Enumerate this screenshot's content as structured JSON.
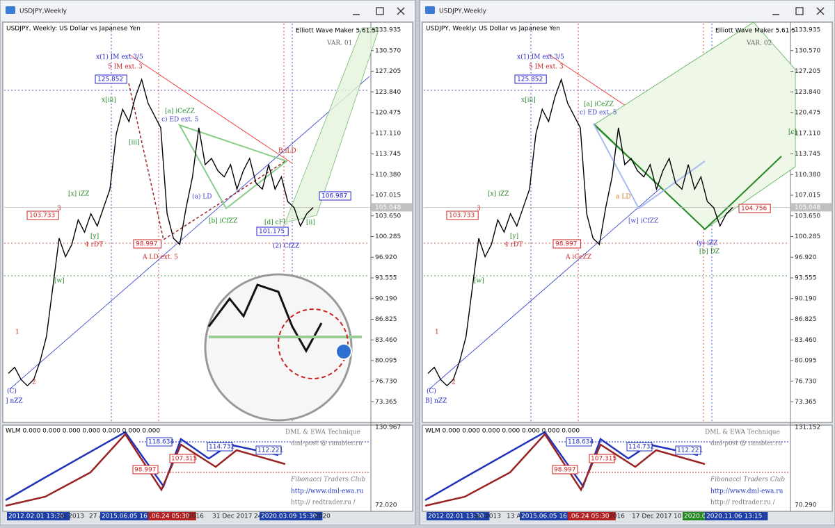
{
  "price_trace": [
    78,
    79,
    77,
    76,
    77,
    80,
    84,
    92,
    100,
    97,
    99,
    103,
    101,
    104,
    102,
    105,
    108,
    117,
    121,
    119,
    123,
    125.85,
    122,
    120,
    118,
    104,
    100,
    99,
    105,
    110,
    118,
    112,
    113,
    111,
    110,
    112,
    108,
    111,
    113,
    109,
    108,
    112,
    108,
    110,
    106,
    105,
    102,
    104,
    105
  ],
  "windows": [
    {
      "title": "USDJPY,Weekly",
      "header": "USDJPY, Weekly:  US Dollar vs Japanese Yen",
      "ea": "Elliott Wave Maker 5.61.5",
      "variant": "VAR. 01",
      "price_ticks": [
        "133.935",
        "130.570",
        "127.205",
        "123.840",
        "120.475",
        "117.110",
        "113.745",
        "110.380",
        "107.015",
        "103.650",
        "100.285",
        "96.920",
        "93.555",
        "90.190",
        "86.825",
        "83.460",
        "80.095",
        "76.730",
        "73.365"
      ],
      "current_price": "105.048",
      "annotations": [
        {
          "text": "x(1) IM ext.3/5",
          "color": "#2222cc"
        },
        {
          "text": "5 IM ext. 3",
          "color": "#cc2222"
        },
        {
          "text": "125.852",
          "color": "#2222cc",
          "boxed": true
        },
        {
          "text": "103.733",
          "color": "#cc2222",
          "boxed": true
        },
        {
          "text": "3",
          "color": "#cc2222"
        },
        {
          "text": "4 rDT",
          "color": "#cc2222"
        },
        {
          "text": "98.997",
          "color": "#cc2222",
          "boxed": true
        },
        {
          "text": "A LD ext. 5",
          "color": "#cc2222"
        },
        {
          "text": "(2) CfZZ",
          "color": "#2222cc"
        },
        {
          "text": "101.175",
          "color": "#2222cc",
          "boxed": true
        },
        {
          "text": "106.987",
          "color": "#2222cc",
          "boxed": true
        },
        {
          "text": "[a] iCeZZ",
          "color": "#228822"
        },
        {
          "text": "c) ED ext. 5",
          "color": "#4444cc"
        },
        {
          "text": "B iLD",
          "color": "#cc2222"
        },
        {
          "text": "(a) LD",
          "color": "#4444cc"
        },
        {
          "text": "[b] iCfZZ",
          "color": "#228822"
        },
        {
          "text": "[d] cFL",
          "color": "#228822"
        },
        {
          "text": "(C)",
          "color": "#2222cc"
        },
        {
          "text": "] nZZ",
          "color": "#2222cc"
        },
        {
          "text": "1",
          "color": "#cc2222"
        },
        {
          "text": "2",
          "color": "#cc2222"
        },
        {
          "text": "[x] iZZ",
          "color": "#228822"
        },
        {
          "text": "[w]",
          "color": "#228822"
        },
        {
          "text": "[y]",
          "color": "#228822"
        },
        {
          "text": "x[iii]",
          "color": "#228822"
        },
        {
          "text": "[iii]",
          "color": "#228822"
        },
        {
          "text": "[ii]",
          "color": "#228822"
        }
      ],
      "sub": {
        "label": "WLM 0.000 0.000 0.000 0.000 0.000 0.000 0.000",
        "axis_top": "130.967",
        "axis_bottom": "72.020",
        "levels": [
          "118.634",
          "114.732",
          "107.315",
          "98.997",
          "112.221"
        ],
        "credits": [
          "DML & EWA Technique",
          "dml-post @ rambler.ru",
          "Fibonacci Traders Club",
          "http://www.dml-ewa.ru",
          "http:// redtrader.ru /"
        ]
      },
      "time_labels": [
        {
          "text": "2012.02.01 13:30",
          "highlight": "#1f3fa8"
        },
        {
          "text": "eb 2013"
        },
        {
          "text": "27 A"
        },
        {
          "text": "2015.06.05 16:30",
          "highlight": "#1f3fa8"
        },
        {
          "text": ".06.24 05:30",
          "highlight": "#b22222"
        },
        {
          "text": "2016"
        },
        {
          "text": "31 Dec 2017"
        },
        {
          "text": "24"
        },
        {
          "text": "2020.03.09 15:30",
          "highlight": "#1f3fa8"
        },
        {
          "text": "2020"
        }
      ]
    },
    {
      "title": "USDJPY,Weekly",
      "header": "USDJPY, Weekly:  US Dollar vs Japanese Yen",
      "ea": "Elliott Wave Maker 5.61.5",
      "variant": "VAR. 02",
      "price_ticks": [
        "133.935",
        "130.570",
        "127.205",
        "123.840",
        "120.475",
        "117.110",
        "113.745",
        "110.380",
        "107.015",
        "103.650",
        "100.285",
        "96.920",
        "93.555",
        "90.190",
        "86.825",
        "83.460",
        "80.095",
        "76.730",
        "73.365"
      ],
      "current_price": "105.048",
      "annotations": [
        {
          "text": "x(1) IM ext.3/5",
          "color": "#2222cc"
        },
        {
          "text": "5 IM ext. 3",
          "color": "#cc2222"
        },
        {
          "text": "125.852",
          "color": "#2222cc",
          "boxed": true
        },
        {
          "text": "103.733",
          "color": "#cc2222",
          "boxed": true
        },
        {
          "text": "3",
          "color": "#cc2222"
        },
        {
          "text": "4 rDT",
          "color": "#cc2222"
        },
        {
          "text": "98.997",
          "color": "#cc2222",
          "boxed": true
        },
        {
          "text": "A iCeZZ",
          "color": "#cc2222"
        },
        {
          "text": "(y) iZZ",
          "color": "#2222cc"
        },
        {
          "text": "104.756",
          "color": "#cc2222",
          "boxed": true
        },
        {
          "text": "[c]",
          "color": "#228822"
        },
        {
          "text": "[a] iCeZZ",
          "color": "#228822"
        },
        {
          "text": "c) ED ext. 5",
          "color": "#4444cc"
        },
        {
          "text": "[b] DZ",
          "color": "#228822"
        },
        {
          "text": "a LD",
          "color": "#cc7722"
        },
        {
          "text": "[w] iCfZZ",
          "color": "#4444cc"
        },
        {
          "text": "(C)",
          "color": "#2222cc"
        },
        {
          "text": "B] nZZ",
          "color": "#2222cc"
        },
        {
          "text": "1",
          "color": "#cc2222"
        },
        {
          "text": "2",
          "color": "#cc2222"
        },
        {
          "text": "[x] iZZ",
          "color": "#228822"
        },
        {
          "text": "[w]",
          "color": "#228822"
        },
        {
          "text": "[y]",
          "color": "#228822"
        },
        {
          "text": "x[iii]",
          "color": "#228822"
        }
      ],
      "sub": {
        "label": "WLM 0.000 0.000 0.000 0.000 0.000 0.000 0.000",
        "axis_top": "131.152",
        "axis_bottom": "70.290",
        "levels": [
          "118.634",
          "114.732",
          "107.315",
          "98.997",
          "112.221"
        ],
        "credits": [
          "DML & EWA Technique",
          "dml-post @ rambler.ru",
          "Fibonacci Traders Club",
          "http://www.dml-ewa.ru",
          "http:// redtrader.ru /"
        ]
      },
      "time_labels": [
        {
          "text": "2012.02.01 13:30",
          "highlight": "#1f3fa8"
        },
        {
          "text": "an 2013"
        },
        {
          "text": "13 A"
        },
        {
          "text": "2015.06.05 16:30",
          "highlight": "#1f3fa8"
        },
        {
          "text": ".06.24 05:30",
          "highlight": "#b22222"
        },
        {
          "text": "2016"
        },
        {
          "text": "17 Dec 2017"
        },
        {
          "text": "10"
        },
        {
          "text": "2020.0",
          "highlight": "#228822"
        },
        {
          "text": "2020.11.06 13:15",
          "highlight": "#1f3fa8"
        }
      ]
    }
  ]
}
